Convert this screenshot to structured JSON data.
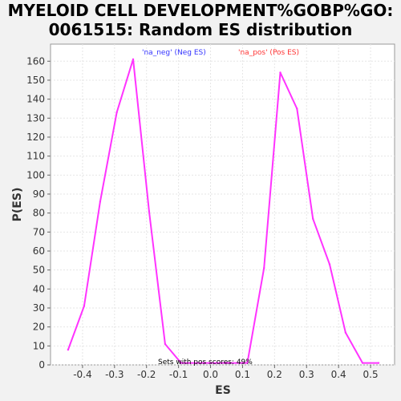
{
  "chart_data": {
    "type": "line",
    "title": "MYELOID CELL DEVELOPMENT%GOBP%GO:\n0061515: Random ES distribution",
    "xlabel": "ES",
    "ylabel": "P(ES)",
    "xlim": [
      -0.5,
      0.575
    ],
    "ylim": [
      0,
      169
    ],
    "xticks": [
      -0.4,
      -0.3,
      -0.2,
      -0.1,
      0.0,
      0.1,
      0.2,
      0.3,
      0.4,
      0.5
    ],
    "xtick_labels": [
      "-0.4",
      "-0.3",
      "-0.2",
      "-0.1",
      "0.0",
      "0.1",
      "0.2",
      "0.3",
      "0.4",
      "0.5"
    ],
    "yticks": [
      0,
      10,
      20,
      30,
      40,
      50,
      60,
      70,
      80,
      90,
      100,
      110,
      120,
      130,
      140,
      150,
      160
    ],
    "grid": true,
    "legend": [
      {
        "label": "'na_neg' (Neg ES)",
        "color": "#3333ff"
      },
      {
        "label": "'na_pos' (Pos ES)",
        "color": "#ff3333"
      }
    ],
    "annotation": "Sets with pos scores: 49%",
    "line_color": "#ff33ff",
    "series": [
      {
        "x": [
          -0.445,
          -0.395,
          -0.345,
          -0.293,
          -0.242,
          -0.192,
          -0.142,
          -0.092,
          0.115,
          0.167,
          0.218,
          0.27,
          0.32,
          0.372,
          0.422,
          0.475,
          0.525
        ],
        "y": [
          8,
          31,
          86,
          133,
          161,
          81,
          11,
          1,
          1,
          51,
          154,
          135,
          77,
          53,
          17,
          1,
          1
        ]
      }
    ]
  }
}
